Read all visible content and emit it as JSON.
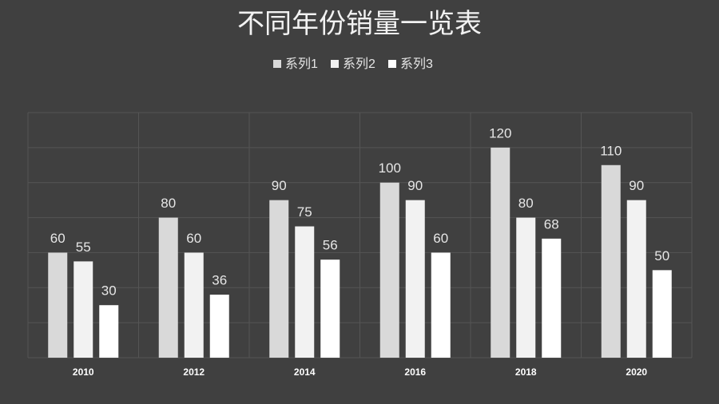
{
  "chart_data": {
    "type": "bar",
    "title": "不同年份销量一览表",
    "categories": [
      "2010",
      "2012",
      "2014",
      "2016",
      "2018",
      "2020"
    ],
    "series": [
      {
        "name": "系列1",
        "color": "#d9d9d9",
        "values": [
          60,
          80,
          90,
          100,
          120,
          110
        ]
      },
      {
        "name": "系列2",
        "color": "#f2f2f2",
        "values": [
          55,
          60,
          75,
          90,
          80,
          90
        ]
      },
      {
        "name": "系列3",
        "color": "#ffffff",
        "values": [
          30,
          36,
          56,
          60,
          68,
          50
        ]
      }
    ],
    "ylim": [
      0,
      140
    ],
    "yticks": [
      0,
      20,
      40,
      60,
      80,
      100,
      120,
      140
    ],
    "grid": true,
    "legend": "top"
  }
}
